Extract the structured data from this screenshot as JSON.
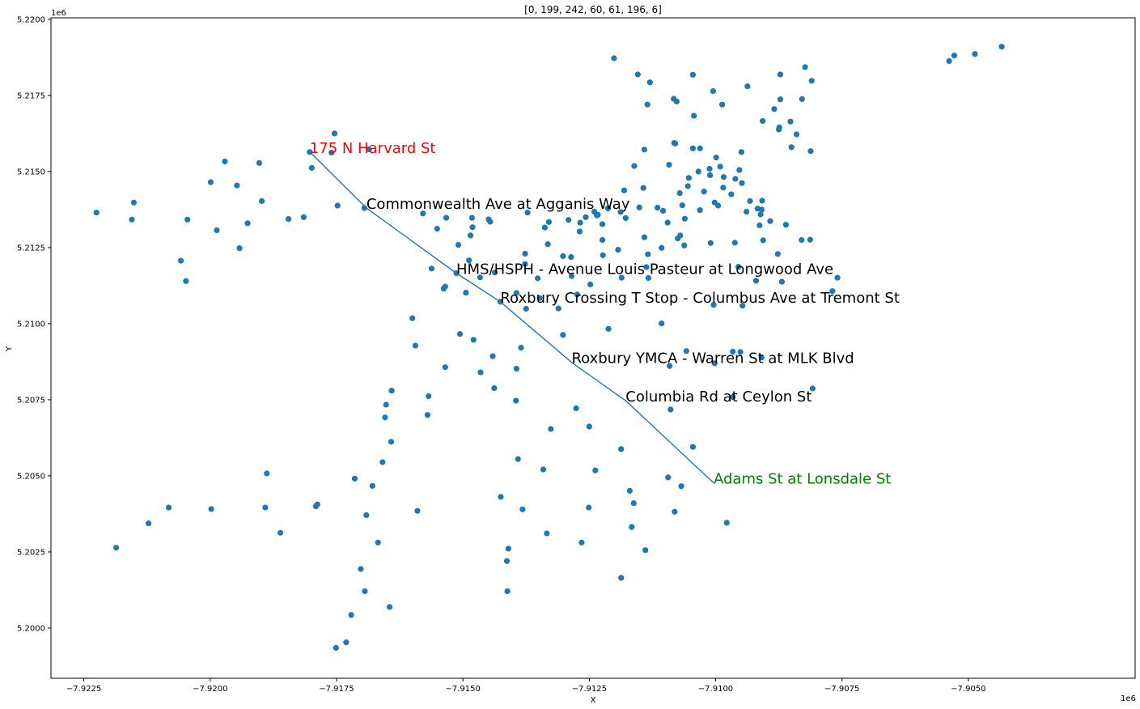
{
  "chart_data": {
    "type": "scatter",
    "title": "[0, 199, 242, 60, 61, 196, 6]",
    "xlabel": "X",
    "ylabel": "Y",
    "x_offset_label": "1e6",
    "y_offset_label": "1e6",
    "xlim": [
      -7.92315,
      -7.9017
    ],
    "ylim": [
      5.19835,
      5.22005
    ],
    "xticks": [
      -7.9225,
      -7.92,
      -7.9175,
      -7.915,
      -7.9125,
      -7.91,
      -7.9075,
      -7.905
    ],
    "xtick_labels": [
      "−7.9225",
      "−7.9200",
      "−7.9175",
      "−7.9150",
      "−7.9125",
      "−7.9100",
      "−7.9075",
      "−7.9050"
    ],
    "yticks": [
      5.2,
      5.2025,
      5.205,
      5.2075,
      5.21,
      5.2125,
      5.215,
      5.2175,
      5.22
    ],
    "ytick_labels": [
      "5.2000",
      "5.2025",
      "5.2050",
      "5.2075",
      "5.2100",
      "5.2125",
      "5.2150",
      "5.2175",
      "5.2200"
    ],
    "grid": false,
    "point_color": "#1f77b4",
    "line_color": "#1f77b4",
    "points": [
      [
        -7.92225,
        5.21365
      ],
      [
        -7.92186,
        5.20264
      ],
      [
        -7.92155,
        5.21342
      ],
      [
        -7.92151,
        5.21398
      ],
      [
        -7.92122,
        5.20344
      ],
      [
        -7.92082,
        5.20396
      ],
      [
        -7.92058,
        5.21207
      ],
      [
        -7.92048,
        5.2114
      ],
      [
        -7.92045,
        5.21342
      ],
      [
        -7.91999,
        5.21465
      ],
      [
        -7.91998,
        5.20391
      ],
      [
        -7.91987,
        5.21307
      ],
      [
        -7.91971,
        5.21533
      ],
      [
        -7.91947,
        5.21454
      ],
      [
        -7.91942,
        5.21248
      ],
      [
        -7.91926,
        5.2133
      ],
      [
        -7.91903,
        5.21528
      ],
      [
        -7.91898,
        5.21403
      ],
      [
        -7.91891,
        5.20396
      ],
      [
        -7.91888,
        5.20508
      ],
      [
        -7.91861,
        5.20313
      ],
      [
        -7.91845,
        5.21344
      ],
      [
        -7.91815,
        5.2135
      ],
      [
        -7.91803,
        5.21564
      ],
      [
        -7.91799,
        5.21512
      ],
      [
        -7.91791,
        5.204
      ],
      [
        -7.91788,
        5.20406
      ],
      [
        -7.9176,
        5.21562
      ],
      [
        -7.91754,
        5.21625
      ],
      [
        -7.91748,
        5.21388
      ],
      [
        -7.91751,
        5.19935
      ],
      [
        -7.91731,
        5.19953
      ],
      [
        -7.91721,
        5.20043
      ],
      [
        -7.91714,
        5.20491
      ],
      [
        -7.91702,
        5.20194
      ],
      [
        -7.91695,
        5.2138
      ],
      [
        -7.91694,
        5.20121
      ],
      [
        -7.91691,
        5.20371
      ],
      [
        -7.91686,
        5.21573
      ],
      [
        -7.91679,
        5.20467
      ],
      [
        -7.91668,
        5.20281
      ],
      [
        -7.91659,
        5.20545
      ],
      [
        -7.91654,
        5.20692
      ],
      [
        -7.91652,
        5.20734
      ],
      [
        -7.91645,
        5.20069
      ],
      [
        -7.91642,
        5.20612
      ],
      [
        -7.91641,
        5.2078
      ],
      [
        -7.916,
        5.21018
      ],
      [
        -7.91594,
        5.20928
      ],
      [
        -7.9159,
        5.20385
      ],
      [
        -7.91579,
        5.21362
      ],
      [
        -7.9157,
        5.207
      ],
      [
        -7.91568,
        5.20762
      ],
      [
        -7.91562,
        5.21181
      ],
      [
        -7.91551,
        5.21312
      ],
      [
        -7.91538,
        5.21115
      ],
      [
        -7.91535,
        5.21122
      ],
      [
        -7.91535,
        5.20857
      ],
      [
        -7.91533,
        5.21348
      ],
      [
        -7.91513,
        5.21166
      ],
      [
        -7.91509,
        5.21259
      ],
      [
        -7.91506,
        5.20966
      ],
      [
        -7.91494,
        5.21102
      ],
      [
        -7.91488,
        5.21208
      ],
      [
        -7.91485,
        5.2129
      ],
      [
        -7.91482,
        5.21348
      ],
      [
        -7.91481,
        5.21317
      ],
      [
        -7.91479,
        5.20947
      ],
      [
        -7.91466,
        5.21152
      ],
      [
        -7.91465,
        5.2084
      ],
      [
        -7.91449,
        5.21343
      ],
      [
        -7.91446,
        5.21335
      ],
      [
        -7.91441,
        5.20893
      ],
      [
        -7.91438,
        5.20788
      ],
      [
        -7.91437,
        5.21168
      ],
      [
        -7.91426,
        5.21072
      ],
      [
        -7.91425,
        5.20431
      ],
      [
        -7.91413,
        5.2022
      ],
      [
        -7.9141,
        5.20261
      ],
      [
        -7.91412,
        5.20121
      ],
      [
        -7.91394,
        5.21101
      ],
      [
        -7.91395,
        5.20747
      ],
      [
        -7.91394,
        5.20852
      ],
      [
        -7.91391,
        5.20555
      ],
      [
        -7.91385,
        5.20921
      ],
      [
        -7.91382,
        5.2039
      ],
      [
        -7.91377,
        5.21196
      ],
      [
        -7.91377,
        5.2123
      ],
      [
        -7.91372,
        5.21365
      ],
      [
        -7.91375,
        5.21049
      ],
      [
        -7.91352,
        5.21149
      ],
      [
        -7.91348,
        5.21084
      ],
      [
        -7.91341,
        5.20521
      ],
      [
        -7.91338,
        5.21316
      ],
      [
        -7.91334,
        5.20311
      ],
      [
        -7.91332,
        5.21261
      ],
      [
        -7.9133,
        5.21334
      ],
      [
        -7.91326,
        5.20654
      ],
      [
        -7.91311,
        5.2105
      ],
      [
        -7.91302,
        5.21222
      ],
      [
        -7.91302,
        5.20963
      ],
      [
        -7.91291,
        5.21341
      ],
      [
        -7.91286,
        5.21219
      ],
      [
        -7.91285,
        5.21156
      ],
      [
        -7.91276,
        5.20722
      ],
      [
        -7.91274,
        5.21096
      ],
      [
        -7.91269,
        5.21303
      ],
      [
        -7.91268,
        5.21332
      ],
      [
        -7.91265,
        5.20281
      ],
      [
        -7.91257,
        5.2135
      ],
      [
        -7.91251,
        5.20396
      ],
      [
        -7.9125,
        5.20662
      ],
      [
        -7.91248,
        5.21129
      ],
      [
        -7.9124,
        5.21368
      ],
      [
        -7.91238,
        5.20518
      ],
      [
        -7.91235,
        5.21356
      ],
      [
        -7.91233,
        5.21358
      ],
      [
        -7.91224,
        5.21327
      ],
      [
        -7.91224,
        5.21275
      ],
      [
        -7.91223,
        5.21225
      ],
      [
        -7.91213,
        5.21379
      ],
      [
        -7.91212,
        5.20983
      ],
      [
        -7.91201,
        5.21872
      ],
      [
        -7.91193,
        5.21243
      ],
      [
        -7.91188,
        5.21367
      ],
      [
        -7.91187,
        5.20588
      ],
      [
        -7.91187,
        5.20165
      ],
      [
        -7.91186,
        5.21151
      ],
      [
        -7.91181,
        5.21438
      ],
      [
        -7.91178,
        5.21347
      ],
      [
        -7.9117,
        5.20451
      ],
      [
        -7.91166,
        5.20332
      ],
      [
        -7.91161,
        5.21518
      ],
      [
        -7.91162,
        5.2041
      ],
      [
        -7.91154,
        5.21819
      ],
      [
        -7.91151,
        5.21382
      ],
      [
        -7.91143,
        5.21446
      ],
      [
        -7.91141,
        5.21572
      ],
      [
        -7.91141,
        5.21284
      ],
      [
        -7.91139,
        5.20256
      ],
      [
        -7.91137,
        5.21186
      ],
      [
        -7.91135,
        5.2172
      ],
      [
        -7.91134,
        5.21228
      ],
      [
        -7.91133,
        5.2115
      ],
      [
        -7.9113,
        5.21793
      ],
      [
        -7.91115,
        5.21381
      ],
      [
        -7.91107,
        5.21249
      ],
      [
        -7.91107,
        5.21001
      ],
      [
        -7.91104,
        5.21371
      ],
      [
        -7.91095,
        5.21332
      ],
      [
        -7.91094,
        5.20495
      ],
      [
        -7.91092,
        5.21522
      ],
      [
        -7.91091,
        5.20861
      ],
      [
        -7.91089,
        5.20718
      ],
      [
        -7.91083,
        5.21739
      ],
      [
        -7.91082,
        5.21594
      ],
      [
        -7.9108,
        5.21592
      ],
      [
        -7.91081,
        5.20382
      ],
      [
        -7.91077,
        5.2173
      ],
      [
        -7.91075,
        5.2128
      ],
      [
        -7.91071,
        5.21429
      ],
      [
        -7.9107,
        5.2129
      ],
      [
        -7.91068,
        5.20466
      ],
      [
        -7.91066,
        5.21389
      ],
      [
        -7.91062,
        5.21257
      ],
      [
        -7.91061,
        5.21345
      ],
      [
        -7.91058,
        5.2091
      ],
      [
        -7.91055,
        5.21452
      ],
      [
        -7.91053,
        5.21479
      ],
      [
        -7.91045,
        5.21576
      ],
      [
        -7.91045,
        5.20595
      ],
      [
        -7.91045,
        5.21818
      ],
      [
        -7.91043,
        5.21683
      ],
      [
        -7.91034,
        5.215
      ],
      [
        -7.91031,
        5.21373
      ],
      [
        -7.91031,
        5.21576
      ],
      [
        -7.91023,
        5.21434
      ],
      [
        -7.91012,
        5.21509
      ],
      [
        -7.91011,
        5.21488
      ],
      [
        -7.9101,
        5.21265
      ],
      [
        -7.91005,
        5.21764
      ],
      [
        -7.91004,
        5.21062
      ],
      [
        -7.91002,
        5.21398
      ],
      [
        -7.91002,
        5.2087
      ],
      [
        -7.90999,
        5.21546
      ],
      [
        -7.90995,
        5.21388
      ],
      [
        -7.90991,
        5.21516
      ],
      [
        -7.90987,
        5.2172
      ],
      [
        -7.90985,
        5.21447
      ],
      [
        -7.90984,
        5.21482
      ],
      [
        -7.90978,
        5.20346
      ],
      [
        -7.90969,
        5.21425
      ],
      [
        -7.90966,
        5.20908
      ],
      [
        -7.90966,
        5.20759
      ],
      [
        -7.90962,
        5.21266
      ],
      [
        -7.90961,
        5.21476
      ],
      [
        -7.90955,
        5.21187
      ],
      [
        -7.90953,
        5.21505
      ],
      [
        -7.90951,
        5.20907
      ],
      [
        -7.90949,
        5.21564
      ],
      [
        -7.90948,
        5.21462
      ],
      [
        -7.90947,
        5.21059
      ],
      [
        -7.90939,
        5.21368
      ],
      [
        -7.90937,
        5.2178
      ],
      [
        -7.90932,
        5.21403
      ],
      [
        -7.9092,
        5.21141
      ],
      [
        -7.90917,
        5.21378
      ],
      [
        -7.90913,
        5.21323
      ],
      [
        -7.90909,
        5.20889
      ],
      [
        -7.90911,
        5.21359
      ],
      [
        -7.90908,
        5.21404
      ],
      [
        -7.90909,
        5.21375
      ],
      [
        -7.90907,
        5.21666
      ],
      [
        -7.90906,
        5.21274
      ],
      [
        -7.90892,
        5.21337
      ],
      [
        -7.90884,
        5.21705
      ],
      [
        -7.90877,
        5.21229
      ],
      [
        -7.90875,
        5.21638
      ],
      [
        -7.90874,
        5.21645
      ],
      [
        -7.90872,
        5.21737
      ],
      [
        -7.90872,
        5.21819
      ],
      [
        -7.90869,
        5.21138
      ],
      [
        -7.90861,
        5.21325
      ],
      [
        -7.90852,
        5.21664
      ],
      [
        -7.9085,
        5.2158
      ],
      [
        -7.9084,
        5.21622
      ],
      [
        -7.9083,
        5.21275
      ],
      [
        -7.90829,
        5.21738
      ],
      [
        -7.90823,
        5.21843
      ],
      [
        -7.9081,
        5.21798
      ],
      [
        -7.90813,
        5.21276
      ],
      [
        -7.90812,
        5.21567
      ],
      [
        -7.90808,
        5.20787
      ],
      [
        -7.90769,
        5.21107
      ],
      [
        -7.90759,
        5.21151
      ],
      [
        -7.90538,
        5.21863
      ],
      [
        -7.90528,
        5.21881
      ],
      [
        -7.90487,
        5.21886
      ],
      [
        -7.90434,
        5.2191
      ]
    ],
    "route": [
      [
        -7.91803,
        5.21564
      ],
      [
        -7.91691,
        5.2138
      ],
      [
        -7.91513,
        5.21166
      ],
      [
        -7.91426,
        5.21072
      ],
      [
        -7.91285,
        5.20873
      ],
      [
        -7.91178,
        5.20747
      ],
      [
        -7.91004,
        5.20477
      ]
    ],
    "annotations": [
      {
        "text": "175 N Harvard St",
        "x": -7.91803,
        "y": 5.21564,
        "color": "#ff0000"
      },
      {
        "text": "Commonwealth Ave at Agganis Way",
        "x": -7.91691,
        "y": 5.2138,
        "color": "#000000"
      },
      {
        "text": "HMS/HSPH - Avenue Louis Pasteur at Longwood Ave",
        "x": -7.91513,
        "y": 5.21166,
        "color": "#000000"
      },
      {
        "text": "Roxbury Crossing T Stop - Columbus Ave at Tremont St",
        "x": -7.91426,
        "y": 5.21072,
        "color": "#000000"
      },
      {
        "text": "Roxbury YMCA - Warren St at MLK Blvd",
        "x": -7.91285,
        "y": 5.20873,
        "color": "#000000"
      },
      {
        "text": "Columbia Rd at Ceylon St",
        "x": -7.91178,
        "y": 5.20747,
        "color": "#000000"
      },
      {
        "text": "Adams St at Lonsdale St",
        "x": -7.91004,
        "y": 5.20477,
        "color": "#008000"
      }
    ]
  }
}
